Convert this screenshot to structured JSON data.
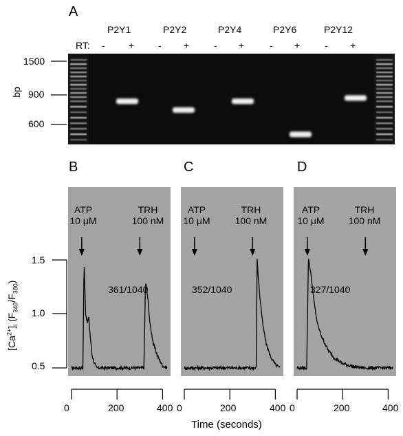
{
  "panels": {
    "A": "A",
    "B": "B",
    "C": "C",
    "D": "D"
  },
  "gel": {
    "rt_label": "RT:",
    "lanes": [
      "P2Y1",
      "P2Y2",
      "P2Y4",
      "P2Y6",
      "P2Y12"
    ],
    "rt_signs": [
      "-",
      "+",
      "-",
      "+",
      "-",
      "+",
      "-",
      "+",
      "-",
      "+"
    ],
    "y_axis_label": "bp",
    "y_ticks": [
      "1500",
      "900",
      "600"
    ],
    "bands": [
      {
        "lane": "P2Y1",
        "rt": "+",
        "size_bp": 840
      },
      {
        "lane": "P2Y2",
        "rt": "+",
        "size_bp": 740
      },
      {
        "lane": "P2Y4",
        "rt": "+",
        "size_bp": 840
      },
      {
        "lane": "P2Y6",
        "rt": "+",
        "size_bp": 520
      },
      {
        "lane": "P2Y12",
        "rt": "+",
        "size_bp": 880
      }
    ]
  },
  "traces": {
    "y_axis_label": "[Ca2+]i (F340/F380)",
    "y_ticks": [
      "1.5",
      "1.0",
      "0.5"
    ],
    "x_axis_label": "Time (seconds)",
    "x_ticks": [
      "0",
      "200",
      "400"
    ],
    "stim1": {
      "name": "ATP",
      "dose": "10 μM",
      "time_s": 45
    },
    "stim2": {
      "name": "TRH",
      "dose": "100 nM",
      "time_s": 300
    },
    "panels": [
      {
        "id": "B",
        "ratio_label": "361/1040"
      },
      {
        "id": "C",
        "ratio_label": "352/1040"
      },
      {
        "id": "D",
        "ratio_label": "327/1040"
      }
    ]
  },
  "colors": {
    "gel_background": "#0c0c0c",
    "band": "#f2f2f2",
    "trace_panel": "#a3a3a3",
    "trace_line": "#000000"
  },
  "chart_data": [
    {
      "type": "line",
      "panel": "B",
      "xlabel": "Time (seconds)",
      "ylabel": "[Ca2+]i (F340/F380)",
      "xlim": [
        0,
        420
      ],
      "ylim": [
        0.45,
        1.6
      ],
      "series": [
        {
          "x": [
            0,
            50,
            55,
            62,
            70,
            76,
            82,
            90,
            100,
            110,
            120,
            300,
            318,
            325,
            335,
            345,
            360,
            380,
            400,
            420
          ],
          "y": [
            0.5,
            0.5,
            1.5,
            1.0,
            0.92,
            0.96,
            0.8,
            0.62,
            0.55,
            0.5,
            0.5,
            0.5,
            0.5,
            1.3,
            1.15,
            0.9,
            0.72,
            0.6,
            0.52,
            0.5
          ]
        }
      ]
    },
    {
      "type": "line",
      "panel": "C",
      "xlabel": "Time (seconds)",
      "ylabel": "[Ca2+]i (F340/F380)",
      "xlim": [
        0,
        420
      ],
      "ylim": [
        0.45,
        1.6
      ],
      "series": [
        {
          "x": [
            0,
            100,
            200,
            300,
            316,
            320,
            330,
            345,
            360,
            380,
            400,
            420
          ],
          "y": [
            0.5,
            0.5,
            0.5,
            0.5,
            0.5,
            1.5,
            1.2,
            0.9,
            0.72,
            0.6,
            0.53,
            0.5
          ]
        }
      ]
    },
    {
      "type": "line",
      "panel": "D",
      "xlabel": "Time (seconds)",
      "ylabel": "[Ca2+]i (F340/F380)",
      "xlim": [
        0,
        420
      ],
      "ylim": [
        0.45,
        1.6
      ],
      "series": [
        {
          "x": [
            0,
            42,
            50,
            60,
            75,
            90,
            110,
            135,
            160,
            200,
            250,
            300,
            350,
            420
          ],
          "y": [
            0.5,
            0.5,
            1.52,
            1.38,
            1.1,
            0.9,
            0.78,
            0.67,
            0.6,
            0.54,
            0.51,
            0.5,
            0.5,
            0.5
          ]
        }
      ]
    }
  ]
}
